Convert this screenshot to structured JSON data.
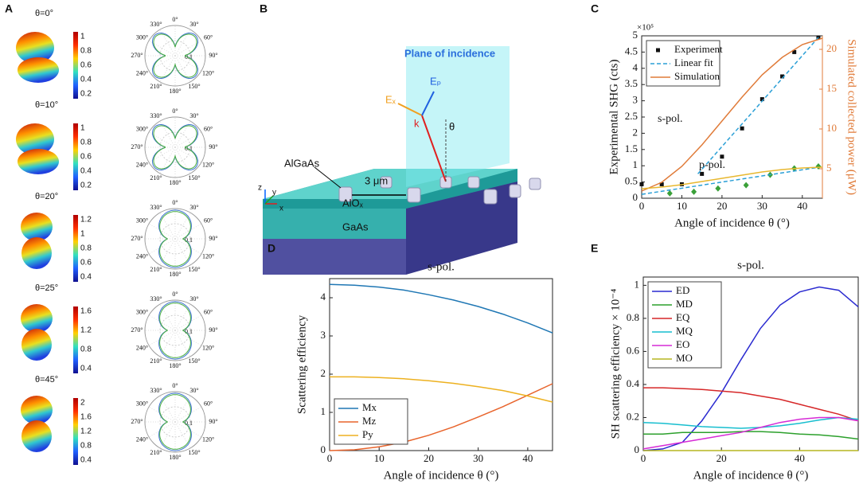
{
  "panel_labels": [
    "A",
    "B",
    "C",
    "D",
    "E"
  ],
  "panel_a": {
    "rows": [
      {
        "theta": "θ=0°",
        "colorbar_ticks": [
          "1",
          "0.8",
          "0.6",
          "0.4",
          "0.2"
        ]
      },
      {
        "theta": "θ=10°",
        "colorbar_ticks": [
          "1",
          "0.8",
          "0.6",
          "0.4",
          "0.2"
        ]
      },
      {
        "theta": "θ=20°",
        "colorbar_ticks": [
          "1.2",
          "1",
          "0.8",
          "0.6",
          "0.4"
        ]
      },
      {
        "theta": "θ=25°",
        "colorbar_ticks": [
          "1.6",
          "1.2",
          "0.8",
          "0.4"
        ]
      },
      {
        "theta": "θ=45°",
        "colorbar_ticks": [
          "2",
          "1.6",
          "1.2",
          "0.8",
          "0.4"
        ]
      }
    ],
    "polar_angles": [
      "0°",
      "30°",
      "60°",
      "90°",
      "120°",
      "150°",
      "180°",
      "210°",
      "240°",
      "270°",
      "300°",
      "330°"
    ],
    "polar_radius_label": "0.1"
  },
  "panel_b": {
    "plane": "Plane of incidence",
    "pillar": "AlGaAs",
    "spacing": "3 μm",
    "layer": "AlOₓ",
    "substrate": "GaAs",
    "ex": "Eₓ",
    "ep": "Eₚ",
    "k": "k",
    "theta": "θ",
    "axes": [
      "z",
      "y",
      "x"
    ]
  },
  "chart_data": [
    {
      "type": "line",
      "xlabel": "Angle of incidence θ (°)",
      "ylabel": "Experimental SHG (cts)",
      "y_multiplier": "×10⁵",
      "y2label": "Simulated collected power (μW)",
      "y2color": "#e07b39",
      "annotations": [
        "s-pol.",
        "p-pol."
      ],
      "xlim": [
        0,
        45
      ],
      "xticks": [
        0,
        10,
        20,
        30,
        40
      ],
      "ylim": [
        0,
        5
      ],
      "yticks": [
        0,
        0.5,
        1,
        1.5,
        2,
        2.5,
        3,
        3.5,
        4,
        4.5,
        5
      ],
      "y2lim": [
        1.3,
        21.7
      ],
      "y2ticks": [
        5,
        10,
        15,
        20
      ],
      "legend": "upper left",
      "series": [
        {
          "name": "Experiment",
          "color": "#111111",
          "marker": "square",
          "line": false,
          "x": [
            0,
            5,
            10,
            15,
            20,
            25,
            30,
            35,
            38,
            44
          ],
          "values": [
            0.43,
            0.43,
            0.43,
            0.75,
            1.28,
            2.15,
            3.05,
            3.75,
            4.5,
            4.95
          ]
        },
        {
          "color": "#3aa038",
          "marker": "diamond",
          "line": false,
          "x": [
            7,
            13,
            19,
            26,
            32,
            38,
            44
          ],
          "values": [
            0.15,
            0.2,
            0.3,
            0.4,
            0.72,
            0.92,
            0.98
          ]
        },
        {
          "name": "Linear fit",
          "color": "#2a9fd6",
          "dash": true,
          "x": [
            14,
            44
          ],
          "values": [
            0.75,
            4.95
          ]
        },
        {
          "color": "#2a9fd6",
          "dash": true,
          "x": [
            0,
            44
          ],
          "values": [
            0.12,
            0.95
          ]
        },
        {
          "name": "Simulation",
          "color": "#e07b39",
          "axis": "y2",
          "x": [
            0,
            5,
            10,
            15,
            20,
            25,
            30,
            35,
            40,
            45
          ],
          "values": [
            2.2,
            3.3,
            5.3,
            8.0,
            11.0,
            14.0,
            16.8,
            19.0,
            20.6,
            21.4
          ]
        },
        {
          "color": "#e8b830",
          "axis": "y2",
          "x": [
            0,
            5,
            10,
            15,
            20,
            25,
            30,
            35,
            40,
            45
          ],
          "values": [
            2.5,
            2.7,
            3.0,
            3.4,
            3.8,
            4.2,
            4.6,
            4.9,
            5.1,
            5.2
          ]
        }
      ]
    },
    {
      "type": "line",
      "title": "s-pol.",
      "xlabel": "Angle of incidence θ (°)",
      "ylabel": "Scattering efficiency",
      "xlim": [
        0,
        45
      ],
      "xticks": [
        0,
        10,
        20,
        30,
        40
      ],
      "ylim": [
        0,
        4.5
      ],
      "yticks": [
        0,
        1,
        2,
        3,
        4
      ],
      "legend": "lower left",
      "x": [
        0,
        5,
        10,
        15,
        20,
        25,
        30,
        35,
        40,
        45
      ],
      "series": [
        {
          "name": "Mx",
          "color": "#1f77b4",
          "values": [
            4.35,
            4.33,
            4.28,
            4.2,
            4.08,
            3.94,
            3.77,
            3.57,
            3.34,
            3.08
          ]
        },
        {
          "name": "Mz",
          "color": "#e8642c",
          "values": [
            0,
            0.02,
            0.1,
            0.22,
            0.4,
            0.62,
            0.88,
            1.15,
            1.45,
            1.75
          ]
        },
        {
          "name": "Py",
          "color": "#edb120",
          "values": [
            1.93,
            1.93,
            1.91,
            1.88,
            1.83,
            1.76,
            1.67,
            1.57,
            1.43,
            1.27
          ]
        }
      ]
    },
    {
      "type": "line",
      "title": "s-pol.",
      "xlabel": "Angle of incidence θ (°)",
      "ylabel": "SH scattering efficiency × 10⁻⁴",
      "xlim": [
        0,
        55
      ],
      "xticks": [
        0,
        20,
        40
      ],
      "ylim": [
        0,
        1.05
      ],
      "yticks": [
        0,
        0.2,
        0.4,
        0.6,
        0.8,
        1
      ],
      "legend": "upper left",
      "x": [
        0,
        5,
        10,
        15,
        20,
        25,
        30,
        35,
        40,
        45,
        50,
        55
      ],
      "series": [
        {
          "name": "ED",
          "color": "#2a2ad0",
          "values": [
            0,
            0.01,
            0.05,
            0.18,
            0.35,
            0.55,
            0.74,
            0.88,
            0.96,
            0.99,
            0.97,
            0.87
          ]
        },
        {
          "name": "MD",
          "color": "#2ca02c",
          "values": [
            0.1,
            0.1,
            0.11,
            0.11,
            0.11,
            0.115,
            0.115,
            0.11,
            0.1,
            0.095,
            0.085,
            0.07
          ]
        },
        {
          "name": "EQ",
          "color": "#d62728",
          "values": [
            0.38,
            0.38,
            0.375,
            0.37,
            0.36,
            0.35,
            0.33,
            0.31,
            0.28,
            0.25,
            0.22,
            0.18
          ]
        },
        {
          "name": "MQ",
          "color": "#17becf",
          "values": [
            0.17,
            0.165,
            0.155,
            0.145,
            0.14,
            0.135,
            0.14,
            0.15,
            0.165,
            0.185,
            0.2,
            0.19
          ]
        },
        {
          "name": "EO",
          "color": "#d62bd6",
          "values": [
            0.01,
            0.03,
            0.05,
            0.07,
            0.09,
            0.11,
            0.14,
            0.17,
            0.19,
            0.2,
            0.2,
            0.18
          ]
        },
        {
          "name": "MO",
          "color": "#b5b520",
          "values": [
            0,
            0,
            0,
            0,
            0,
            0,
            0,
            0,
            0,
            0,
            0,
            0
          ]
        }
      ]
    }
  ]
}
